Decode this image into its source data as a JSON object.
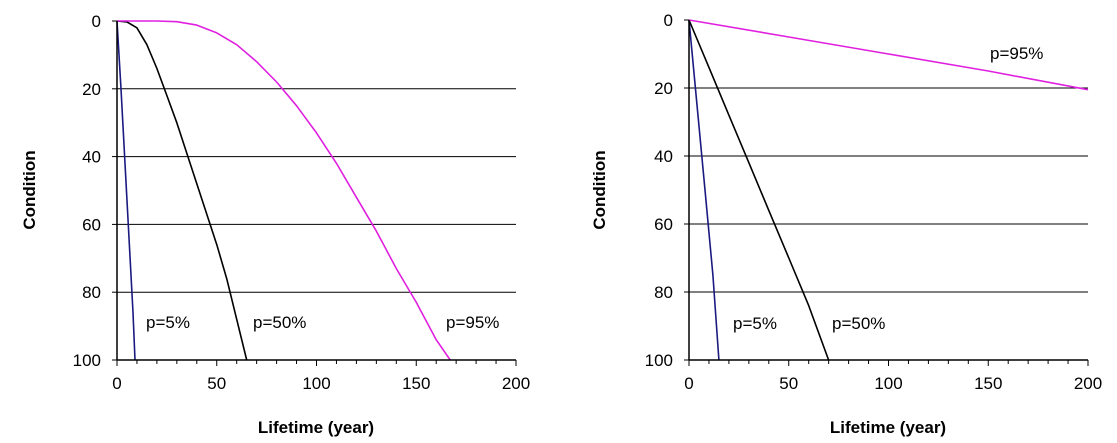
{
  "chart_data": [
    {
      "type": "line",
      "title": "",
      "xlabel": "Lifetime (year)",
      "ylabel": "Condition",
      "xlim": [
        0,
        200
      ],
      "ylim": [
        0,
        100
      ],
      "y_inverted": true,
      "x_ticks": [
        "0",
        "50",
        "100",
        "150",
        "200"
      ],
      "y_ticks": [
        "0",
        "20",
        "40",
        "60",
        "80",
        "100"
      ],
      "grid": "horizontal",
      "series": [
        {
          "name": "p=5%",
          "color": "#1a1a80",
          "x": [
            0,
            2,
            4,
            6,
            8,
            9
          ],
          "y": [
            0,
            20,
            42,
            64,
            86,
            100
          ]
        },
        {
          "name": "p=50%",
          "color": "#000000",
          "x": [
            0,
            5,
            10,
            15,
            20,
            25,
            30,
            35,
            40,
            45,
            50,
            55,
            60,
            65
          ],
          "y": [
            0,
            0.3,
            2,
            7,
            14,
            22,
            30,
            39,
            48,
            57,
            66,
            76,
            88,
            100
          ]
        },
        {
          "name": "p=95%",
          "color": "#e020e0",
          "x": [
            0,
            10,
            20,
            30,
            40,
            50,
            60,
            70,
            80,
            90,
            100,
            110,
            120,
            130,
            140,
            150,
            160,
            167
          ],
          "y": [
            0,
            0,
            0,
            0.2,
            1.2,
            3.5,
            7,
            12,
            18,
            25,
            33,
            42,
            52,
            62,
            73,
            83,
            94,
            100
          ]
        }
      ]
    },
    {
      "type": "line",
      "title": "",
      "xlabel": "Lifetime (year)",
      "ylabel": "Condition",
      "xlim": [
        0,
        200
      ],
      "ylim": [
        0,
        100
      ],
      "y_inverted": true,
      "x_ticks": [
        "0",
        "50",
        "100",
        "150",
        "200"
      ],
      "y_ticks": [
        "0",
        "20",
        "40",
        "60",
        "80",
        "100"
      ],
      "grid": "horizontal",
      "series": [
        {
          "name": "p=5%",
          "color": "#1a1a80",
          "x": [
            0,
            4,
            8,
            12,
            15
          ],
          "y": [
            0,
            25,
            50,
            75,
            100
          ]
        },
        {
          "name": "p=50%",
          "color": "#000000",
          "x": [
            0,
            10,
            20,
            30,
            40,
            50,
            60,
            70
          ],
          "y": [
            0,
            14,
            28,
            42,
            56,
            70,
            84,
            100
          ]
        },
        {
          "name": "p=95%",
          "color": "#e020e0",
          "x": [
            0,
            50,
            100,
            150,
            200
          ],
          "y": [
            0,
            5,
            10,
            15,
            20.5
          ]
        }
      ]
    }
  ]
}
